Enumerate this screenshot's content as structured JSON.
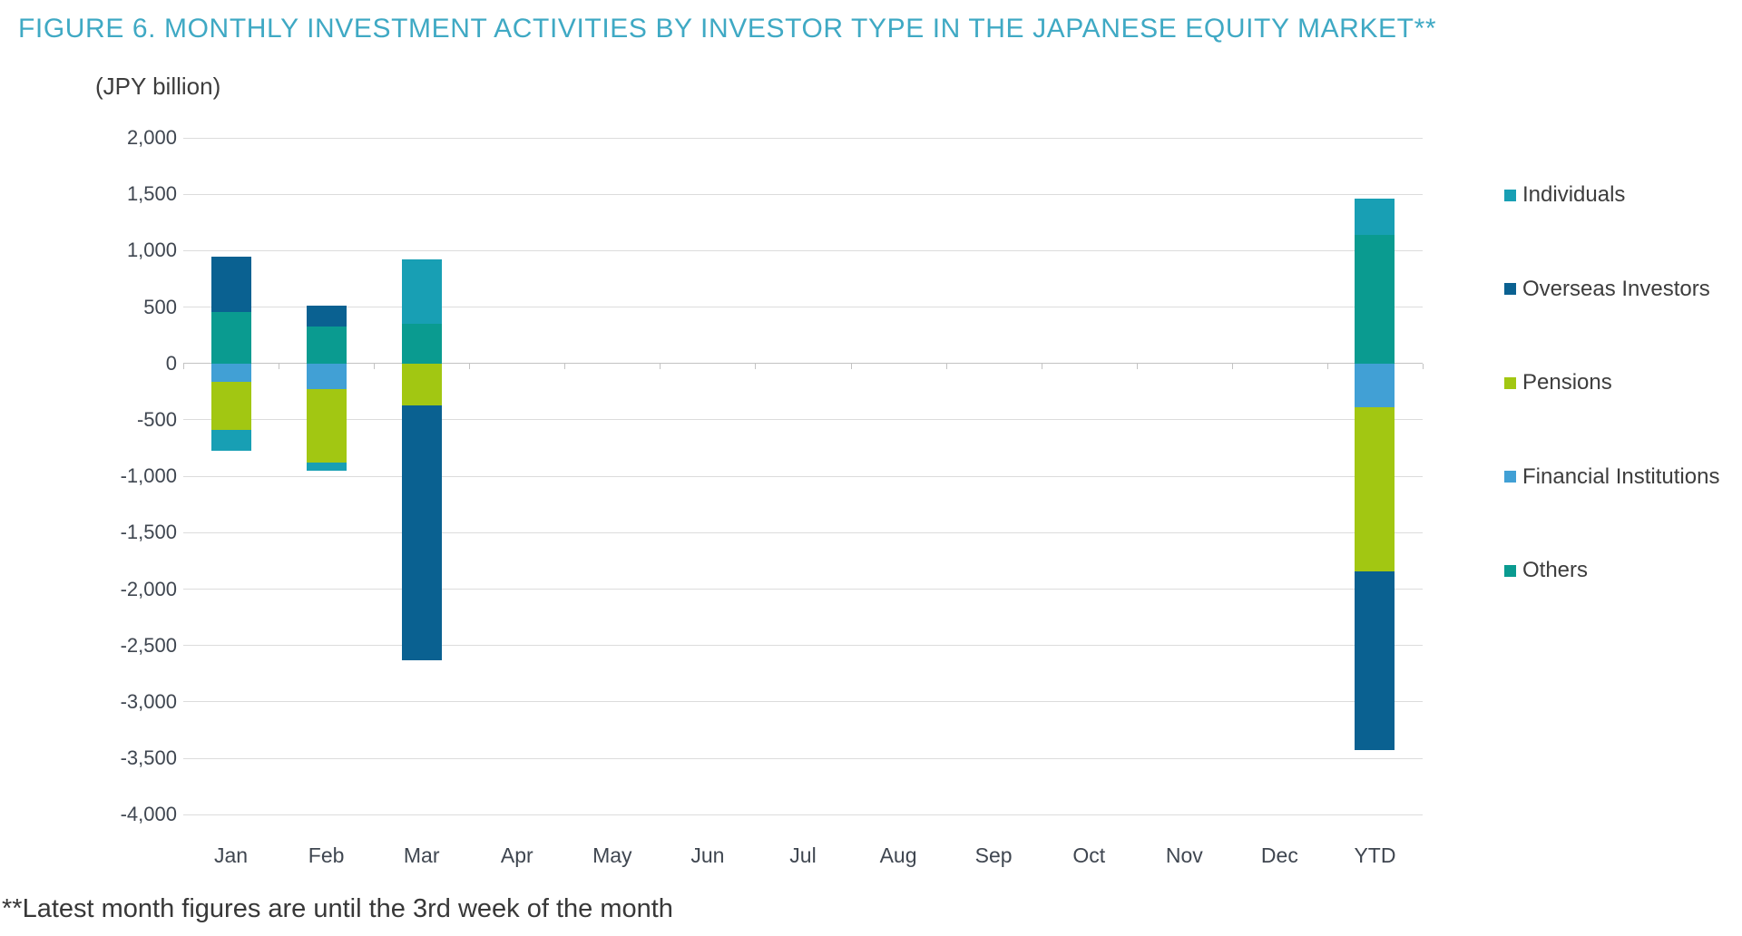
{
  "figure": {
    "title": "FIGURE 6. MONTHLY INVESTMENT ACTIVITIES BY INVESTOR TYPE IN THE JAPANESE EQUITY MARKET**",
    "unit_label": "(JPY billion)",
    "footnote": "**Latest month figures are until the 3rd week of the month"
  },
  "colors": {
    "title_teal": "#3fa9c4",
    "text_dark": "#3d3d3d",
    "axis_text": "#3f4650",
    "gridline": "#dcdcdc",
    "zero_axis": "#c3c3c3",
    "background": "#ffffff"
  },
  "chart_data": {
    "type": "bar",
    "stacked": true,
    "title": "FIGURE 6. MONTHLY INVESTMENT ACTIVITIES BY INVESTOR TYPE IN THE JAPANESE EQUITY MARKET**",
    "subtitle": "(JPY billion)",
    "xlabel": "",
    "ylabel": "(JPY billion)",
    "ylim": [
      -4000,
      2000
    ],
    "ytick_step": 500,
    "ytick_labels": [
      "2,000",
      "1,500",
      "1,000",
      "500",
      "0",
      "-500",
      "-1,000",
      "-1,500",
      "-2,000",
      "-2,500",
      "-3,000",
      "-3,500",
      "-4,000"
    ],
    "ytick_values": [
      2000,
      1500,
      1000,
      500,
      0,
      -500,
      -1000,
      -1500,
      -2000,
      -2500,
      -3000,
      -3500,
      -4000
    ],
    "grid": true,
    "legend_position": "right",
    "stack_note": "segments stack outward from zero in reverse legend order: Others, Financial Institutions, Pensions, Overseas Investors, Individuals",
    "categories": [
      "Jan",
      "Feb",
      "Mar",
      "Apr",
      "May",
      "Jun",
      "Jul",
      "Aug",
      "Sep",
      "Oct",
      "Nov",
      "Dec",
      "YTD"
    ],
    "series": [
      {
        "name": "Individuals",
        "color": "#189fb4",
        "values": [
          -180,
          -70,
          570,
          0,
          0,
          0,
          0,
          0,
          0,
          0,
          0,
          0,
          320
        ]
      },
      {
        "name": "Overseas Investors",
        "color": "#0a6191",
        "values": [
          490,
          180,
          -2260,
          0,
          0,
          0,
          0,
          0,
          0,
          0,
          0,
          0,
          -1590
        ]
      },
      {
        "name": "Pensions",
        "color": "#a2c712",
        "values": [
          -430,
          -650,
          -370,
          0,
          0,
          0,
          0,
          0,
          0,
          0,
          0,
          0,
          -1450
        ]
      },
      {
        "name": "Financial Institutions",
        "color": "#41a0d5",
        "values": [
          -160,
          -230,
          0,
          0,
          0,
          0,
          0,
          0,
          0,
          0,
          0,
          0,
          -390
        ]
      },
      {
        "name": "Others",
        "color": "#0a9b90",
        "values": [
          460,
          330,
          350,
          0,
          0,
          0,
          0,
          0,
          0,
          0,
          0,
          0,
          1140
        ]
      }
    ]
  }
}
